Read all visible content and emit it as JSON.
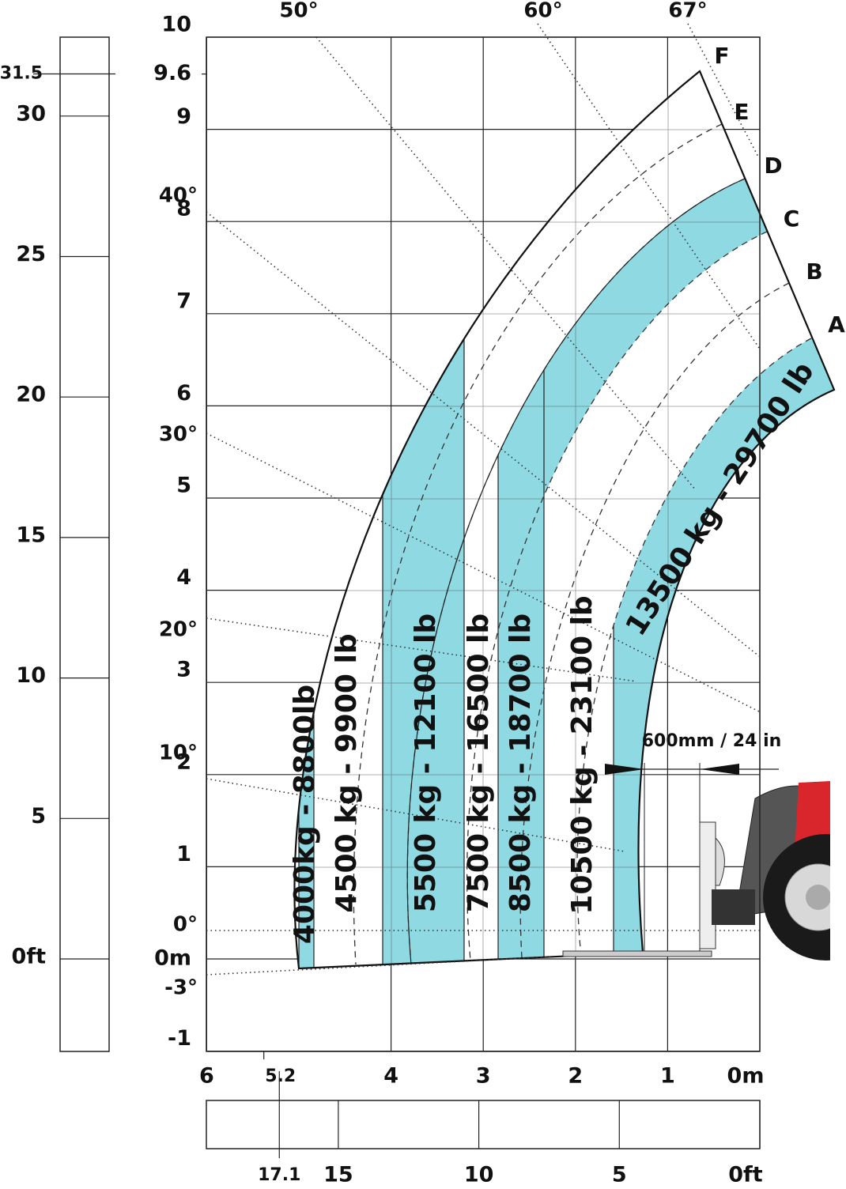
{
  "height_m_axis": {
    "ticks": [
      10,
      9.6,
      9,
      8,
      7,
      6,
      5,
      4,
      3,
      2,
      1,
      {
        "value": 0,
        "label": "0m"
      },
      -1
    ]
  },
  "height_ft_axis": {
    "ticks": [
      31.5,
      30,
      25,
      20,
      15,
      10,
      5,
      {
        "value": 0,
        "label": "0ft"
      }
    ]
  },
  "reach_m_axis": {
    "ticks": [
      6,
      5.2,
      4,
      3,
      2,
      1,
      {
        "value": 0,
        "label": "0m"
      }
    ]
  },
  "reach_ft_axis": {
    "ticks": [
      17.1,
      15,
      10,
      5,
      {
        "value": 0,
        "label": "0ft"
      }
    ]
  },
  "angles": {
    "top": [
      "50°",
      "60°",
      "67°"
    ],
    "left": [
      "40°",
      "30°",
      "20°",
      "10°",
      "0°",
      "-3°"
    ]
  },
  "boom_positions": [
    "F",
    "E",
    "D",
    "C",
    "B",
    "A"
  ],
  "load_zones": [
    "4000kg - 8800lb",
    "4500 kg - 9900 lb",
    "5500 kg - 12100 lb",
    "7500 kg - 16500 lb",
    "8500 kg - 18700 lb",
    "10500 kg - 23100 lb",
    "13500 kg - 29700 lb"
  ],
  "fork_offset": "600mm / 24 in"
}
